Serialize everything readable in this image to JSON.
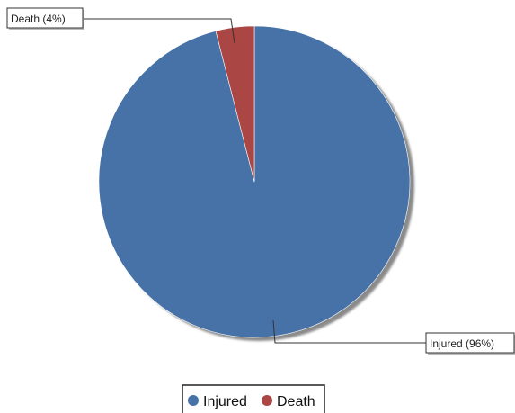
{
  "chart_data": {
    "type": "pie",
    "slices": [
      {
        "name": "Injured",
        "value": 96,
        "label": "Injured (96%)",
        "color": "#4672a8"
      },
      {
        "name": "Death",
        "value": 4,
        "label": "Death (4%)",
        "color": "#aa4643"
      }
    ],
    "legend_position": "bottom",
    "legend": [
      {
        "name": "Injured",
        "color": "#4672a8"
      },
      {
        "name": "Death",
        "color": "#aa4643"
      }
    ]
  }
}
